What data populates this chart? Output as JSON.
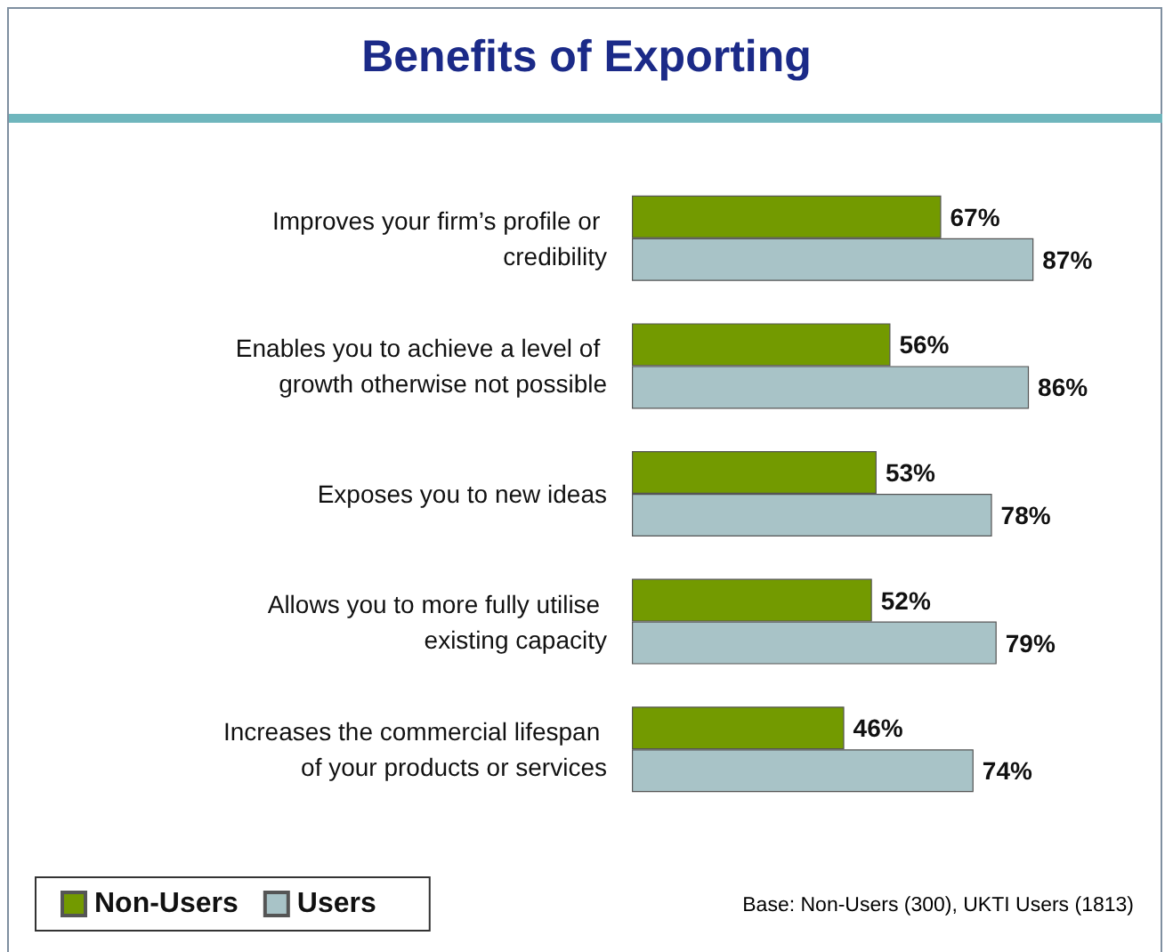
{
  "chart_data": {
    "type": "bar",
    "orientation": "horizontal",
    "title": "Benefits of Exporting",
    "categories": [
      "Improves your firm’s profile or credibility",
      "Enables you to achieve a level of growth otherwise not possible",
      "Exposes you to new ideas",
      "Allows you to more fully utilise existing capacity",
      "Increases the commercial lifespan of your products or services"
    ],
    "series": [
      {
        "name": "Non-Users",
        "color": "#739a00",
        "values": [
          67,
          56,
          53,
          52,
          46
        ],
        "value_labels": [
          "67%",
          "56%",
          "53%",
          "52%",
          "46%"
        ]
      },
      {
        "name": "Users",
        "color": "#a8c3c7",
        "values": [
          87,
          86,
          78,
          79,
          74
        ],
        "value_labels": [
          "87%",
          "86%",
          "78%",
          "79%",
          "74%"
        ]
      }
    ],
    "legend": "bottom left",
    "annotations": [
      "Base: Non-Users (300), UKTI Users (1813)"
    ]
  }
}
